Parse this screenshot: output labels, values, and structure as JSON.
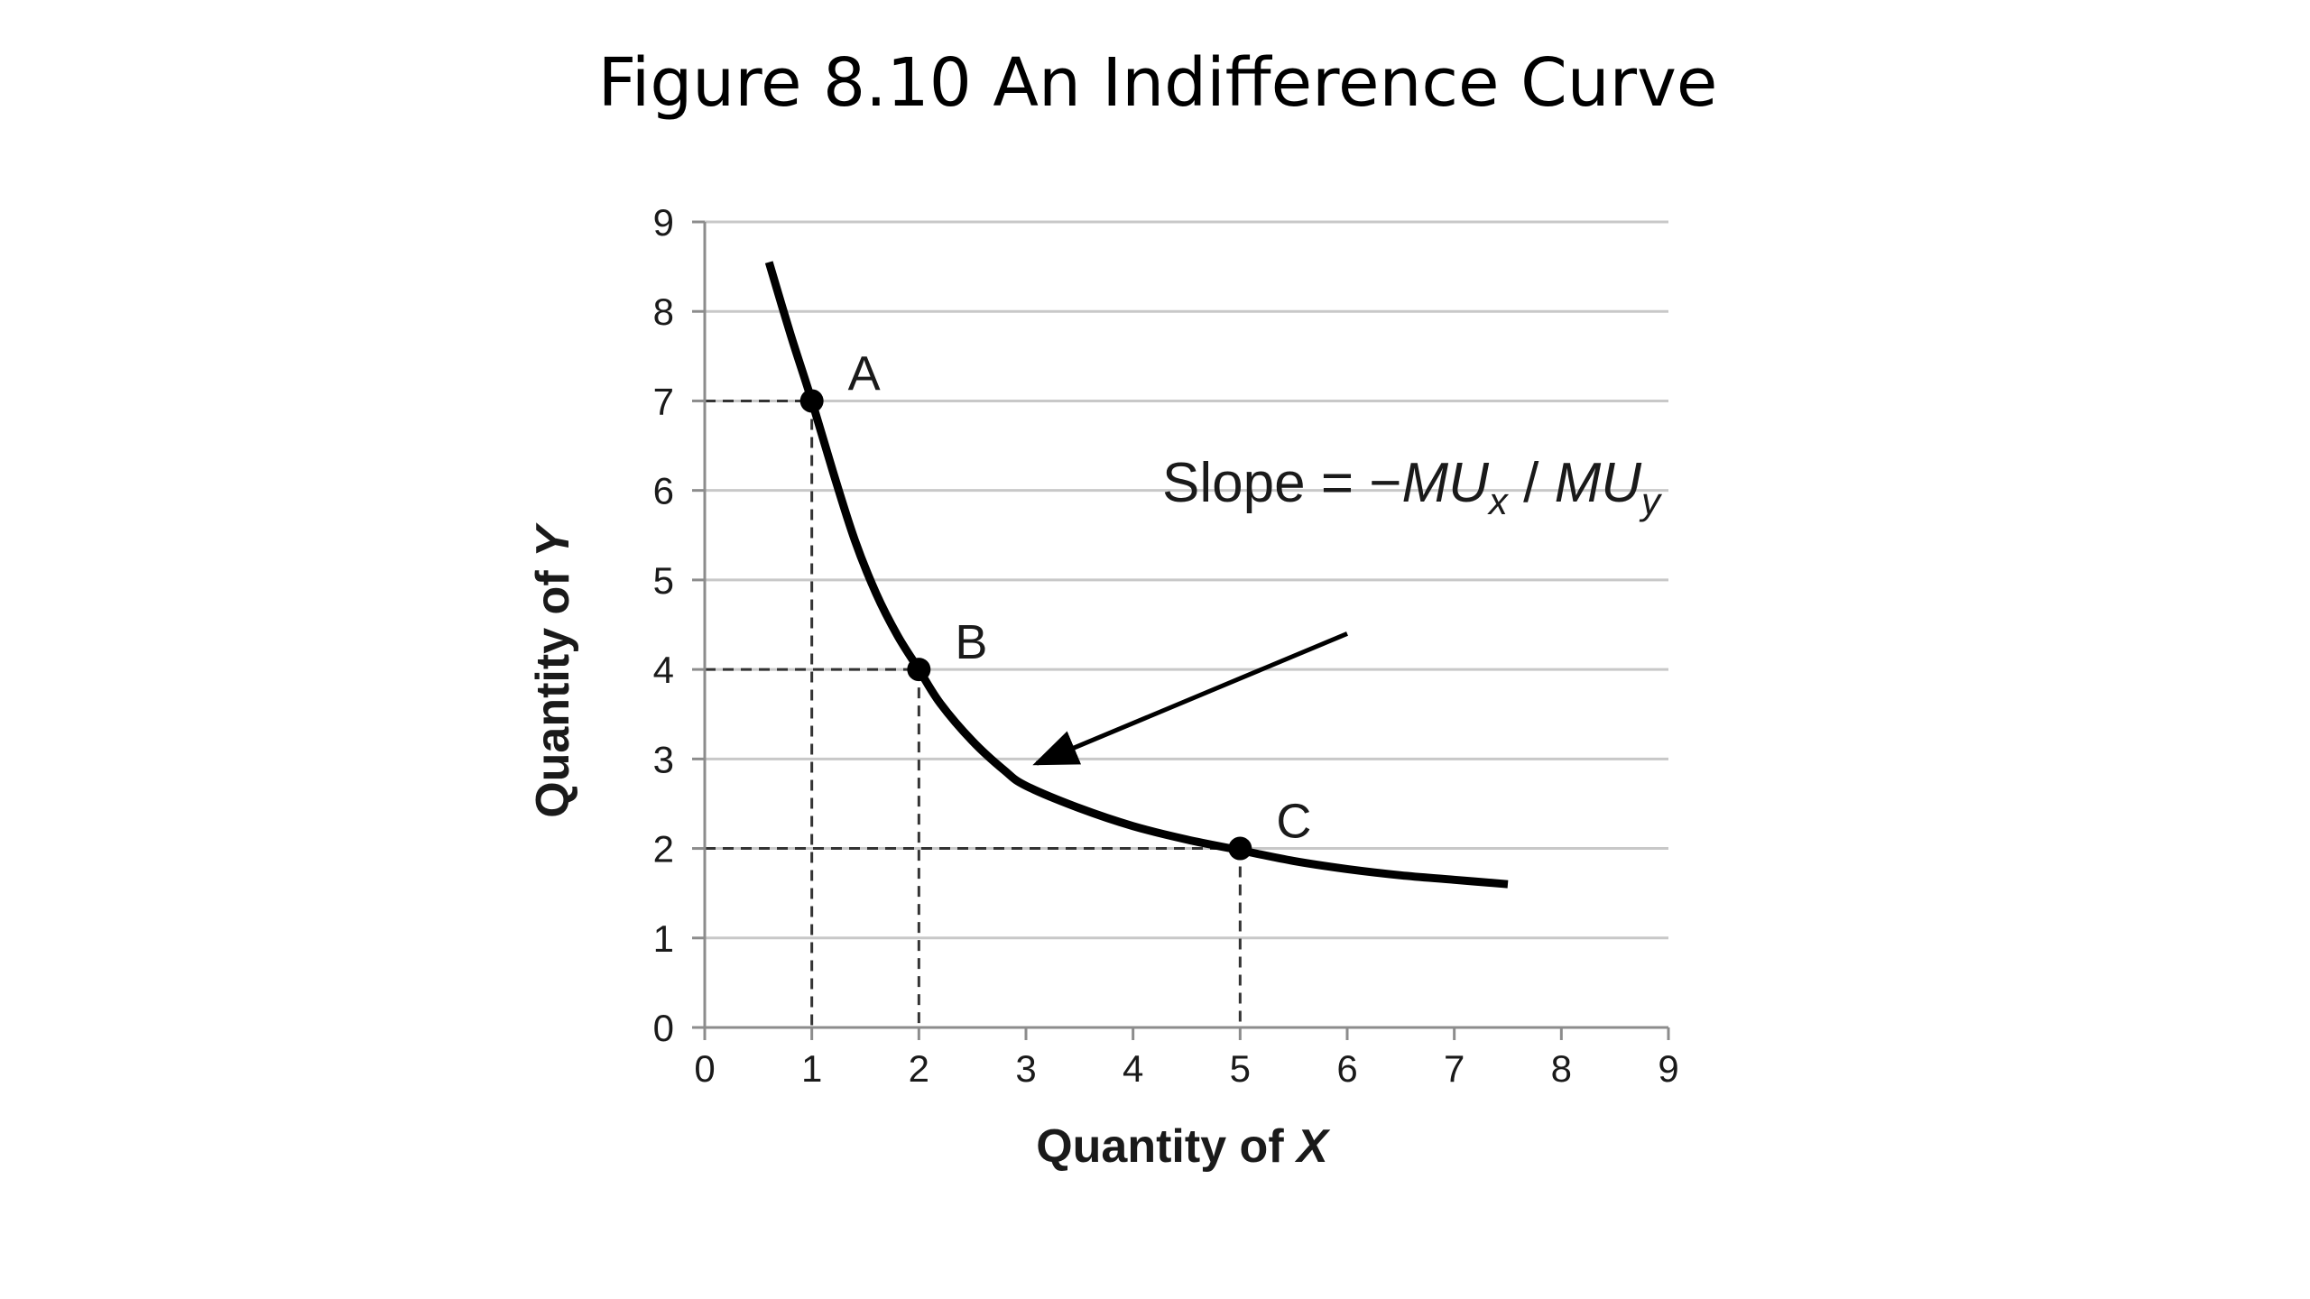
{
  "chart_data": {
    "type": "line",
    "title": "Figure 8.10 An Indifference Curve",
    "xlabel": {
      "prefix": "Quantity of ",
      "var": "X"
    },
    "ylabel": {
      "prefix": "Quantity of ",
      "var": "Y"
    },
    "xlim": [
      0,
      9
    ],
    "ylim": [
      0,
      9
    ],
    "xticks": [
      "0",
      "1",
      "2",
      "3",
      "4",
      "5",
      "6",
      "7",
      "8",
      "9"
    ],
    "yticks": [
      "0",
      "1",
      "2",
      "3",
      "4",
      "5",
      "6",
      "7",
      "8",
      "9"
    ],
    "grid": "horizontal",
    "series": [
      {
        "x": [
          0.6,
          0.8,
          1.0,
          1.2,
          1.4,
          1.6,
          1.8,
          2.0,
          2.2,
          2.5,
          2.8,
          3.0,
          3.5,
          4.0,
          4.5,
          5.0,
          5.5,
          6.0,
          6.5,
          7.0,
          7.5
        ],
        "y": [
          8.55,
          7.75,
          7.0,
          6.2,
          5.45,
          4.85,
          4.38,
          4.0,
          3.62,
          3.2,
          2.87,
          2.7,
          2.45,
          2.25,
          2.1,
          1.98,
          1.86,
          1.77,
          1.7,
          1.65,
          1.6
        ]
      }
    ],
    "points": [
      {
        "label": "A",
        "x": 1,
        "y": 7
      },
      {
        "label": "B",
        "x": 2,
        "y": 4
      },
      {
        "label": "C",
        "x": 5,
        "y": 2
      }
    ],
    "annotation": {
      "prefix": "Slope = −",
      "term1": "MU",
      "sub1": "x",
      "separator": " / ",
      "term2": "MU",
      "sub2": "y",
      "arrow_from": [
        6.0,
        4.4
      ],
      "arrow_to": [
        3.1,
        2.95
      ]
    },
    "colors": {
      "curve": "#000000",
      "grid": "#c8c8c8",
      "axis": "#8c8c8c",
      "guides": "#333333",
      "text": "#1a1a1a"
    }
  }
}
